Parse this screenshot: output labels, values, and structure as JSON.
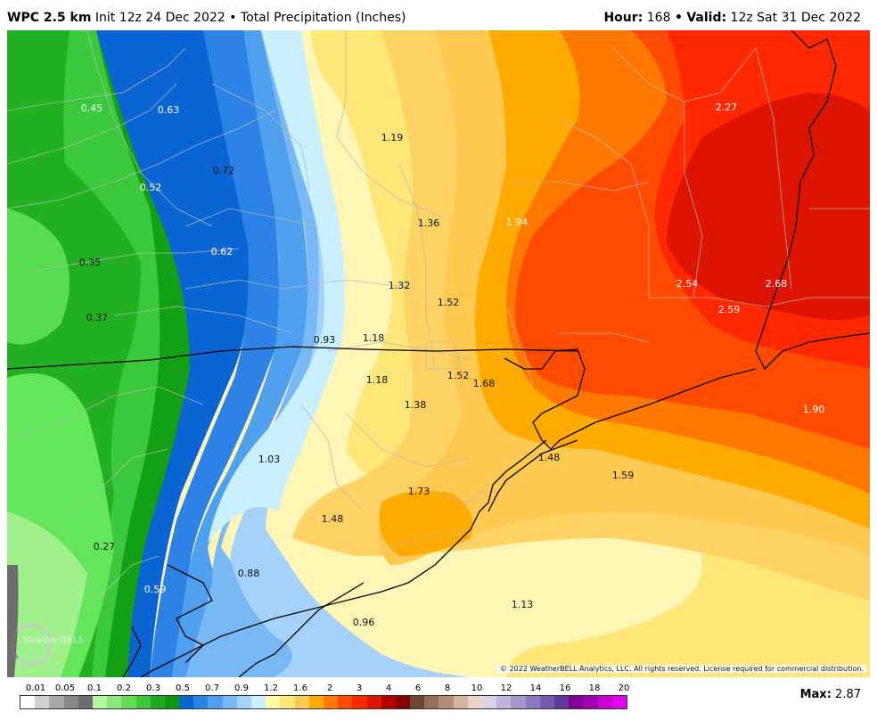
{
  "header": {
    "model": "WPC 2.5 km",
    "init": "Init 12z 24 Dec 2022",
    "bullet": "•",
    "product": "Total Precipitation (Inches)",
    "hour_label": "Hour",
    "hour_value": "168",
    "valid_label": "Valid",
    "valid_value": "12z Sat 31 Dec 2022"
  },
  "map": {
    "values": [
      {
        "text": "0.45",
        "color": "light"
      },
      {
        "text": "0.63",
        "color": "light"
      },
      {
        "text": "1.19",
        "color": "dark"
      },
      {
        "text": "2.27",
        "color": "light"
      },
      {
        "text": "0.72",
        "color": "dark"
      },
      {
        "text": "0.52",
        "color": "light"
      },
      {
        "text": "1.36",
        "color": "dark"
      },
      {
        "text": "1.94",
        "color": "light"
      },
      {
        "text": "0.35",
        "color": "dark"
      },
      {
        "text": "0.62",
        "color": "light"
      },
      {
        "text": "1.32",
        "color": "dark"
      },
      {
        "text": "2.54",
        "color": "light"
      },
      {
        "text": "2.68",
        "color": "light"
      },
      {
        "text": "1.52",
        "color": "dark"
      },
      {
        "text": "2.59",
        "color": "light"
      },
      {
        "text": "0.37",
        "color": "dark"
      },
      {
        "text": "0.93",
        "color": "dark"
      },
      {
        "text": "1.18",
        "color": "dark"
      },
      {
        "text": "1.18",
        "color": "dark"
      },
      {
        "text": "1.52",
        "color": "dark"
      },
      {
        "text": "1.68",
        "color": "dark"
      },
      {
        "text": "1.38",
        "color": "dark"
      },
      {
        "text": "1.90",
        "color": "light"
      },
      {
        "text": "1.48",
        "color": "dark"
      },
      {
        "text": "1.03",
        "color": "dark"
      },
      {
        "text": "1.59",
        "color": "dark"
      },
      {
        "text": "1.73",
        "color": "dark"
      },
      {
        "text": "1.48",
        "color": "dark"
      },
      {
        "text": "0.27",
        "color": "dark"
      },
      {
        "text": "0.88",
        "color": "dark"
      },
      {
        "text": "0.59",
        "color": "light"
      },
      {
        "text": "1.13",
        "color": "dark"
      },
      {
        "text": "0.96",
        "color": "dark"
      }
    ]
  },
  "copyright": "© 2022 WeatherBELL Analytics, LLC. All rights reserved. License required for commercial distribution.",
  "logo_text": "WeatherBELL",
  "legend": {
    "labels": [
      "0.01",
      "0.05",
      "0.1",
      "0.2",
      "0.3",
      "0.5",
      "0.7",
      "0.9",
      "1.2",
      "1.6",
      "2",
      "3",
      "4",
      "6",
      "8",
      "10",
      "12",
      "14",
      "16",
      "18",
      "20"
    ],
    "colors": [
      "#ffffff",
      "#d0d0d0",
      "#a8a8a8",
      "#888888",
      "#6e6e6e",
      "#b4f5a0",
      "#8ce87a",
      "#64dc50",
      "#3cc83c",
      "#1eaa1e",
      "#0f960f",
      "#0a64d2",
      "#2d82e6",
      "#50a0f0",
      "#78b9f5",
      "#a5d2fa",
      "#c8f0ff",
      "#fffaaa",
      "#ffe678",
      "#ffc850",
      "#ffaa00",
      "#ff7800",
      "#ff4b00",
      "#ff2800",
      "#dc1400",
      "#b40000",
      "#870000",
      "#6e4632",
      "#966e5a",
      "#b48c78",
      "#d2b4a0",
      "#ebd2c8",
      "#dcd2e6",
      "#beb4dc",
      "#a596cd",
      "#8c78be",
      "#735aaf",
      "#5a3c9b",
      "#820096",
      "#a000b4",
      "#c800d2",
      "#e600f0"
    ],
    "max_label": "Max",
    "max_value": "2.87"
  }
}
